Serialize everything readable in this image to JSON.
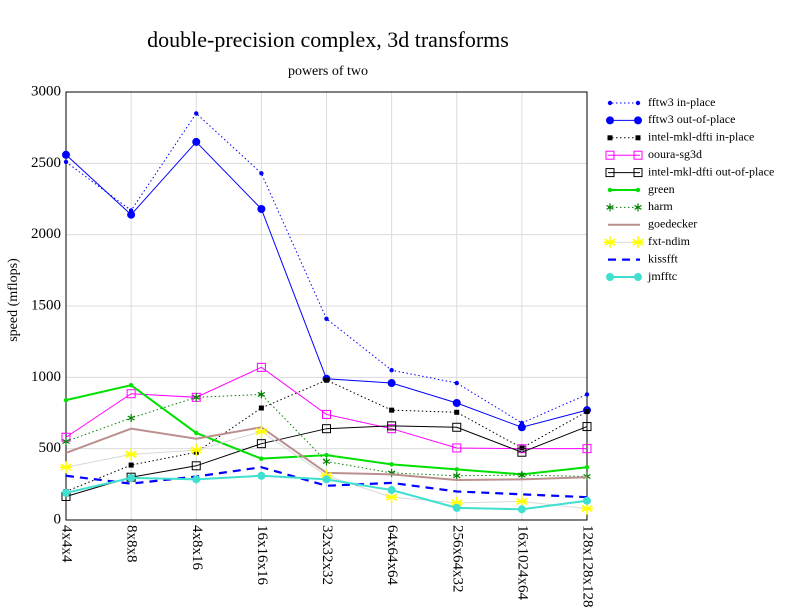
{
  "chart_data": {
    "type": "line",
    "title": "double-precision complex, 3d transforms",
    "subtitle": "powers of two",
    "y_label": "speed (mflops)",
    "categories": [
      "4x4x4",
      "8x8x8",
      "4x8x16",
      "16x16x16",
      "32x32x32",
      "64x64x64",
      "256x64x32",
      "16x1024x64",
      "128x128x128"
    ],
    "ylim": [
      0,
      3000
    ],
    "yticks": [
      0,
      500,
      1000,
      1500,
      2000,
      2500,
      3000
    ],
    "grid": true,
    "legend": "right",
    "series": [
      {
        "name": "fftw3 in-place",
        "color": "#0000ff",
        "line_style": "dotted",
        "marker": "dot",
        "values": [
          2510,
          2170,
          2850,
          2430,
          1410,
          1050,
          960,
          680,
          880
        ]
      },
      {
        "name": "fftw3 out-of-place",
        "color": "#0000ff",
        "line_style": "solid",
        "marker": "circle",
        "values": [
          2560,
          2140,
          2650,
          2180,
          990,
          960,
          820,
          650,
          770
        ]
      },
      {
        "name": "intel-mkl-dfti in-place",
        "color": "#000000",
        "line_style": "dotted",
        "marker": "square-filled",
        "values": [
          200,
          385,
          475,
          785,
          980,
          770,
          755,
          505,
          760
        ]
      },
      {
        "name": "ooura-sg3d",
        "color": "#ff00ff",
        "line_style": "solid",
        "marker": "square-open",
        "values": [
          580,
          885,
          860,
          1070,
          740,
          640,
          505,
          500,
          500
        ]
      },
      {
        "name": "intel-mkl-dfti out-of-place",
        "color": "#000000",
        "line_style": "solid",
        "marker": "square-open",
        "values": [
          165,
          300,
          380,
          535,
          640,
          660,
          650,
          475,
          655
        ]
      },
      {
        "name": "green",
        "color": "#00e000",
        "line_style": "solid-thick",
        "marker": "dot",
        "values": [
          840,
          945,
          610,
          430,
          455,
          390,
          355,
          320,
          370
        ]
      },
      {
        "name": "harm",
        "color": "#008000",
        "line_style": "dotted",
        "marker": "asterisk",
        "values": [
          550,
          715,
          860,
          880,
          410,
          330,
          310,
          315,
          305
        ]
      },
      {
        "name": "goedecker",
        "color": "#bc8f8f",
        "line_style": "solid-thick",
        "marker": "none",
        "values": [
          470,
          640,
          570,
          650,
          330,
          320,
          280,
          285,
          300
        ]
      },
      {
        "name": "fxt-ndim",
        "color": "#ffff00",
        "line_style": "thin",
        "marker": "star",
        "values": [
          370,
          460,
          490,
          620,
          310,
          160,
          120,
          130,
          80
        ]
      },
      {
        "name": "kissfft",
        "color": "#0000ff",
        "line_style": "dashed",
        "marker": "none",
        "values": [
          310,
          255,
          305,
          370,
          240,
          260,
          200,
          180,
          160
        ]
      },
      {
        "name": "jmfftc",
        "color": "#40e0d0",
        "line_style": "solid-thick",
        "marker": "circle",
        "values": [
          190,
          295,
          285,
          310,
          285,
          210,
          85,
          75,
          135
        ]
      }
    ]
  }
}
